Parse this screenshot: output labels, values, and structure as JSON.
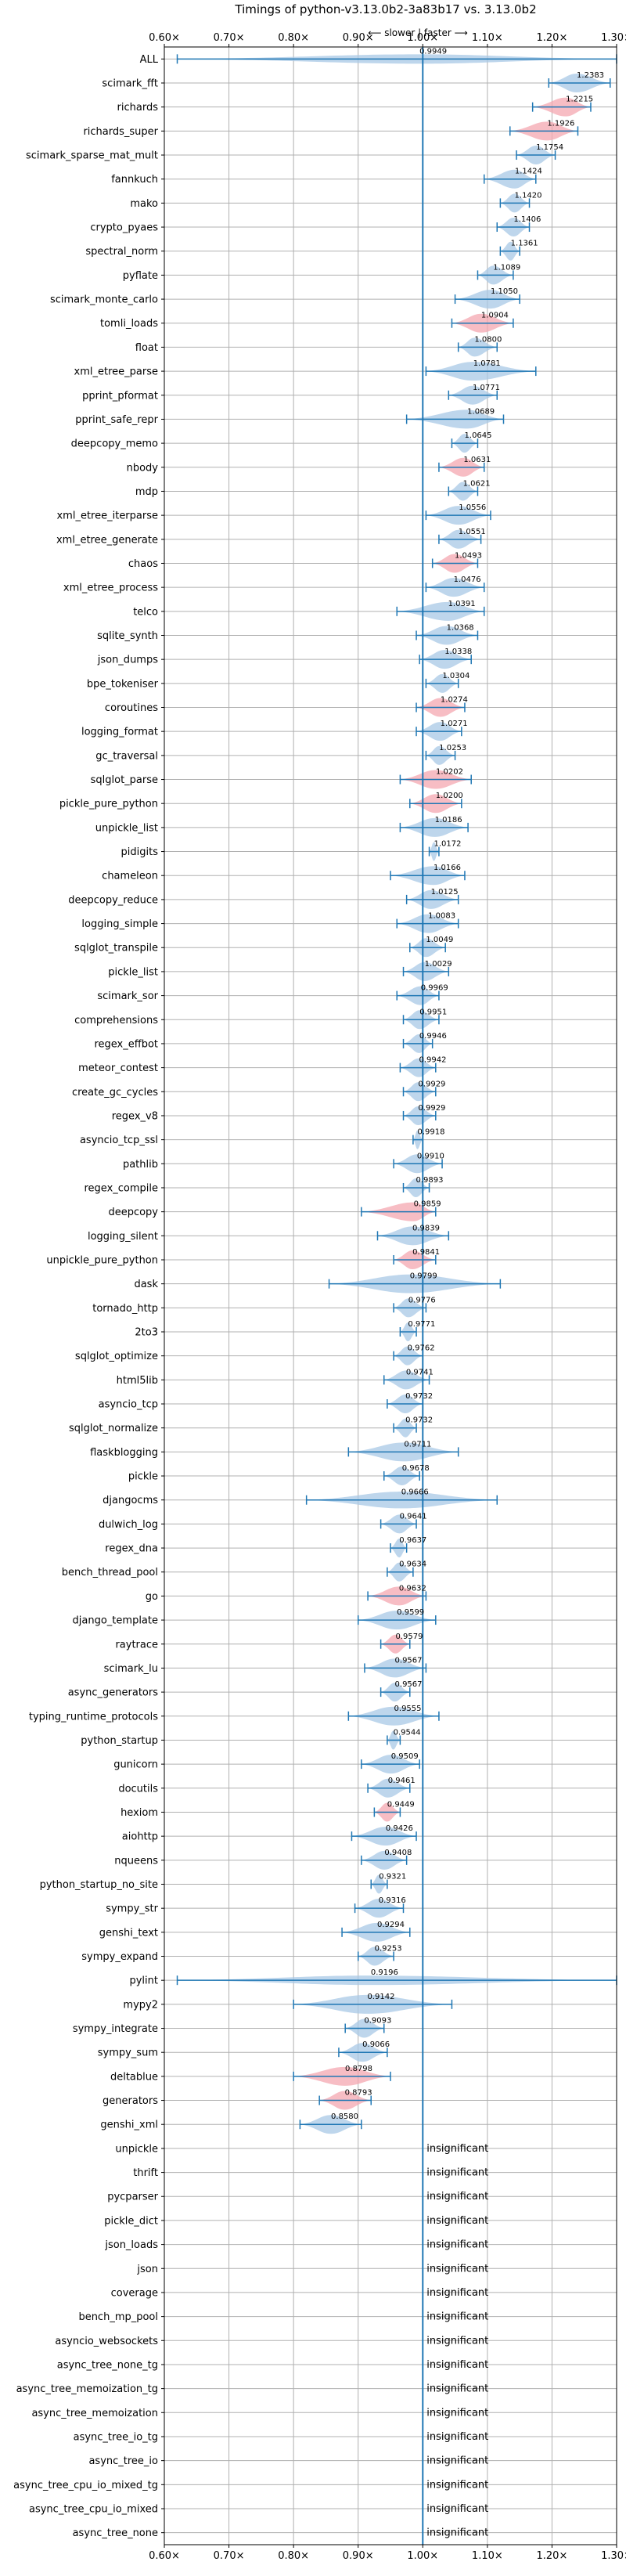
{
  "chart_data": {
    "type": "violin",
    "title": "Timings of python-v3.13.0b2-3a83b17 vs. 3.13.0b2",
    "direction_hint": "⟵ slower | faster ⟶",
    "xlim": [
      0.6,
      1.3
    ],
    "x_ticks": [
      0.6,
      0.7,
      0.8,
      0.9,
      1.0,
      1.1,
      1.2,
      1.3
    ],
    "x_tick_labels": [
      "0.60×",
      "0.70×",
      "0.80×",
      "0.90×",
      "1.00×",
      "1.10×",
      "1.20×",
      "1.30×"
    ],
    "insignificant_label": "insignificant",
    "grid": true,
    "colors": {
      "faster": "#a8c8e6",
      "slower": "#f4a7b0",
      "line": "#1f77b4",
      "axis": "#1f77b4",
      "grid": "#b0b0b0"
    },
    "benchmarks": [
      {
        "name": "ALL",
        "value": 0.9949,
        "low": 0.62,
        "high": 1.3,
        "status": "faster"
      },
      {
        "name": "scimark_fft",
        "value": 1.2383,
        "low": 1.195,
        "high": 1.29,
        "status": "faster"
      },
      {
        "name": "richards",
        "value": 1.2215,
        "low": 1.17,
        "high": 1.26,
        "status": "slower"
      },
      {
        "name": "richards_super",
        "value": 1.1926,
        "low": 1.135,
        "high": 1.24,
        "status": "slower"
      },
      {
        "name": "scimark_sparse_mat_mult",
        "value": 1.1754,
        "low": 1.145,
        "high": 1.205,
        "status": "faster"
      },
      {
        "name": "fannkuch",
        "value": 1.1424,
        "low": 1.095,
        "high": 1.175,
        "status": "faster"
      },
      {
        "name": "mako",
        "value": 1.142,
        "low": 1.12,
        "high": 1.165,
        "status": "faster"
      },
      {
        "name": "crypto_pyaes",
        "value": 1.1406,
        "low": 1.115,
        "high": 1.165,
        "status": "faster"
      },
      {
        "name": "spectral_norm",
        "value": 1.1361,
        "low": 1.12,
        "high": 1.15,
        "status": "faster"
      },
      {
        "name": "pyflate",
        "value": 1.1089,
        "low": 1.085,
        "high": 1.14,
        "status": "faster"
      },
      {
        "name": "scimark_monte_carlo",
        "value": 1.105,
        "low": 1.05,
        "high": 1.15,
        "status": "faster"
      },
      {
        "name": "tomli_loads",
        "value": 1.0904,
        "low": 1.045,
        "high": 1.14,
        "status": "slower"
      },
      {
        "name": "float",
        "value": 1.08,
        "low": 1.055,
        "high": 1.115,
        "status": "faster"
      },
      {
        "name": "xml_etree_parse",
        "value": 1.0781,
        "low": 1.005,
        "high": 1.175,
        "status": "faster"
      },
      {
        "name": "pprint_pformat",
        "value": 1.0771,
        "low": 1.04,
        "high": 1.115,
        "status": "faster"
      },
      {
        "name": "pprint_safe_repr",
        "value": 1.0689,
        "low": 0.975,
        "high": 1.125,
        "status": "faster"
      },
      {
        "name": "deepcopy_memo",
        "value": 1.0645,
        "low": 1.045,
        "high": 1.085,
        "status": "faster"
      },
      {
        "name": "nbody",
        "value": 1.0631,
        "low": 1.025,
        "high": 1.095,
        "status": "slower"
      },
      {
        "name": "mdp",
        "value": 1.0621,
        "low": 1.04,
        "high": 1.085,
        "status": "faster"
      },
      {
        "name": "xml_etree_iterparse",
        "value": 1.0556,
        "low": 1.005,
        "high": 1.105,
        "status": "faster"
      },
      {
        "name": "xml_etree_generate",
        "value": 1.0551,
        "low": 1.025,
        "high": 1.09,
        "status": "faster"
      },
      {
        "name": "chaos",
        "value": 1.0493,
        "low": 1.015,
        "high": 1.085,
        "status": "slower"
      },
      {
        "name": "xml_etree_process",
        "value": 1.0476,
        "low": 1.005,
        "high": 1.095,
        "status": "faster"
      },
      {
        "name": "telco",
        "value": 1.0391,
        "low": 0.96,
        "high": 1.095,
        "status": "faster"
      },
      {
        "name": "sqlite_synth",
        "value": 1.0368,
        "low": 0.99,
        "high": 1.085,
        "status": "faster"
      },
      {
        "name": "json_dumps",
        "value": 1.0338,
        "low": 0.995,
        "high": 1.075,
        "status": "faster"
      },
      {
        "name": "bpe_tokeniser",
        "value": 1.0304,
        "low": 1.005,
        "high": 1.055,
        "status": "faster"
      },
      {
        "name": "coroutines",
        "value": 1.0274,
        "low": 0.99,
        "high": 1.065,
        "status": "slower"
      },
      {
        "name": "logging_format",
        "value": 1.0271,
        "low": 0.99,
        "high": 1.06,
        "status": "faster"
      },
      {
        "name": "gc_traversal",
        "value": 1.0253,
        "low": 1.005,
        "high": 1.05,
        "status": "faster"
      },
      {
        "name": "sqlglot_parse",
        "value": 1.0202,
        "low": 0.965,
        "high": 1.075,
        "status": "slower"
      },
      {
        "name": "pickle_pure_python",
        "value": 1.02,
        "low": 0.98,
        "high": 1.06,
        "status": "slower"
      },
      {
        "name": "unpickle_list",
        "value": 1.0186,
        "low": 0.965,
        "high": 1.07,
        "status": "faster"
      },
      {
        "name": "pidigits",
        "value": 1.0172,
        "low": 1.01,
        "high": 1.025,
        "status": "faster"
      },
      {
        "name": "chameleon",
        "value": 1.0166,
        "low": 0.95,
        "high": 1.065,
        "status": "faster"
      },
      {
        "name": "deepcopy_reduce",
        "value": 1.0125,
        "low": 0.975,
        "high": 1.055,
        "status": "faster"
      },
      {
        "name": "logging_simple",
        "value": 1.0083,
        "low": 0.96,
        "high": 1.055,
        "status": "faster"
      },
      {
        "name": "sqlglot_transpile",
        "value": 1.0049,
        "low": 0.98,
        "high": 1.035,
        "status": "faster"
      },
      {
        "name": "pickle_list",
        "value": 1.0029,
        "low": 0.97,
        "high": 1.04,
        "status": "faster"
      },
      {
        "name": "scimark_sor",
        "value": 0.9969,
        "low": 0.96,
        "high": 1.025,
        "status": "faster"
      },
      {
        "name": "comprehensions",
        "value": 0.9951,
        "low": 0.97,
        "high": 1.025,
        "status": "faster"
      },
      {
        "name": "regex_effbot",
        "value": 0.9946,
        "low": 0.97,
        "high": 1.015,
        "status": "faster"
      },
      {
        "name": "meteor_contest",
        "value": 0.9942,
        "low": 0.965,
        "high": 1.02,
        "status": "faster"
      },
      {
        "name": "create_gc_cycles",
        "value": 0.9929,
        "low": 0.97,
        "high": 1.02,
        "status": "faster"
      },
      {
        "name": "regex_v8",
        "value": 0.9929,
        "low": 0.97,
        "high": 1.02,
        "status": "faster"
      },
      {
        "name": "asyncio_tcp_ssl",
        "value": 0.9918,
        "low": 0.985,
        "high": 1.0,
        "status": "faster"
      },
      {
        "name": "pathlib",
        "value": 0.991,
        "low": 0.955,
        "high": 1.03,
        "status": "faster"
      },
      {
        "name": "regex_compile",
        "value": 0.9893,
        "low": 0.97,
        "high": 1.01,
        "status": "faster"
      },
      {
        "name": "deepcopy",
        "value": 0.9859,
        "low": 0.905,
        "high": 1.02,
        "status": "slower"
      },
      {
        "name": "logging_silent",
        "value": 0.9839,
        "low": 0.93,
        "high": 1.04,
        "status": "faster"
      },
      {
        "name": "unpickle_pure_python",
        "value": 0.9841,
        "low": 0.955,
        "high": 1.02,
        "status": "slower"
      },
      {
        "name": "dask",
        "value": 0.9799,
        "low": 0.855,
        "high": 1.12,
        "status": "faster"
      },
      {
        "name": "tornado_http",
        "value": 0.9776,
        "low": 0.955,
        "high": 1.005,
        "status": "faster"
      },
      {
        "name": "2to3",
        "value": 0.9771,
        "low": 0.965,
        "high": 0.99,
        "status": "faster"
      },
      {
        "name": "sqlglot_optimize",
        "value": 0.9762,
        "low": 0.955,
        "high": 1.0,
        "status": "faster"
      },
      {
        "name": "html5lib",
        "value": 0.9741,
        "low": 0.94,
        "high": 1.01,
        "status": "faster"
      },
      {
        "name": "asyncio_tcp",
        "value": 0.9732,
        "low": 0.945,
        "high": 1.0,
        "status": "faster"
      },
      {
        "name": "sqlglot_normalize",
        "value": 0.9732,
        "low": 0.955,
        "high": 0.99,
        "status": "faster"
      },
      {
        "name": "flaskblogging",
        "value": 0.9711,
        "low": 0.885,
        "high": 1.055,
        "status": "faster"
      },
      {
        "name": "pickle",
        "value": 0.9678,
        "low": 0.94,
        "high": 0.995,
        "status": "faster"
      },
      {
        "name": "djangocms",
        "value": 0.9666,
        "low": 0.82,
        "high": 1.115,
        "status": "faster"
      },
      {
        "name": "dulwich_log",
        "value": 0.9641,
        "low": 0.935,
        "high": 0.99,
        "status": "faster"
      },
      {
        "name": "regex_dna",
        "value": 0.9637,
        "low": 0.95,
        "high": 0.975,
        "status": "faster"
      },
      {
        "name": "bench_thread_pool",
        "value": 0.9634,
        "low": 0.945,
        "high": 0.985,
        "status": "faster"
      },
      {
        "name": "go",
        "value": 0.9632,
        "low": 0.915,
        "high": 1.005,
        "status": "slower"
      },
      {
        "name": "django_template",
        "value": 0.9599,
        "low": 0.9,
        "high": 1.02,
        "status": "faster"
      },
      {
        "name": "raytrace",
        "value": 0.9579,
        "low": 0.935,
        "high": 0.98,
        "status": "slower"
      },
      {
        "name": "scimark_lu",
        "value": 0.9567,
        "low": 0.91,
        "high": 1.005,
        "status": "faster"
      },
      {
        "name": "async_generators",
        "value": 0.9567,
        "low": 0.935,
        "high": 0.98,
        "status": "faster"
      },
      {
        "name": "typing_runtime_protocols",
        "value": 0.9555,
        "low": 0.885,
        "high": 1.025,
        "status": "faster"
      },
      {
        "name": "python_startup",
        "value": 0.9544,
        "low": 0.945,
        "high": 0.965,
        "status": "faster"
      },
      {
        "name": "gunicorn",
        "value": 0.9509,
        "low": 0.905,
        "high": 0.995,
        "status": "faster"
      },
      {
        "name": "docutils",
        "value": 0.9461,
        "low": 0.915,
        "high": 0.98,
        "status": "faster"
      },
      {
        "name": "hexiom",
        "value": 0.9449,
        "low": 0.925,
        "high": 0.965,
        "status": "slower"
      },
      {
        "name": "aiohttp",
        "value": 0.9426,
        "low": 0.89,
        "high": 0.99,
        "status": "faster"
      },
      {
        "name": "nqueens",
        "value": 0.9408,
        "low": 0.905,
        "high": 0.975,
        "status": "faster"
      },
      {
        "name": "python_startup_no_site",
        "value": 0.9321,
        "low": 0.92,
        "high": 0.945,
        "status": "faster"
      },
      {
        "name": "sympy_str",
        "value": 0.9316,
        "low": 0.895,
        "high": 0.97,
        "status": "faster"
      },
      {
        "name": "genshi_text",
        "value": 0.9294,
        "low": 0.875,
        "high": 0.98,
        "status": "faster"
      },
      {
        "name": "sympy_expand",
        "value": 0.9253,
        "low": 0.9,
        "high": 0.955,
        "status": "faster"
      },
      {
        "name": "pylint",
        "value": 0.9196,
        "low": 0.62,
        "high": 1.3,
        "status": "faster"
      },
      {
        "name": "mypy2",
        "value": 0.9142,
        "low": 0.8,
        "high": 1.045,
        "status": "faster"
      },
      {
        "name": "sympy_integrate",
        "value": 0.9093,
        "low": 0.88,
        "high": 0.94,
        "status": "faster"
      },
      {
        "name": "sympy_sum",
        "value": 0.9066,
        "low": 0.87,
        "high": 0.945,
        "status": "faster"
      },
      {
        "name": "deltablue",
        "value": 0.8798,
        "low": 0.8,
        "high": 0.95,
        "status": "slower"
      },
      {
        "name": "generators",
        "value": 0.8793,
        "low": 0.84,
        "high": 0.92,
        "status": "slower"
      },
      {
        "name": "genshi_xml",
        "value": 0.858,
        "low": 0.81,
        "high": 0.905,
        "status": "faster"
      },
      {
        "name": "unpickle",
        "value": null,
        "status": "insignificant"
      },
      {
        "name": "thrift",
        "value": null,
        "status": "insignificant"
      },
      {
        "name": "pycparser",
        "value": null,
        "status": "insignificant"
      },
      {
        "name": "pickle_dict",
        "value": null,
        "status": "insignificant"
      },
      {
        "name": "json_loads",
        "value": null,
        "status": "insignificant"
      },
      {
        "name": "json",
        "value": null,
        "status": "insignificant"
      },
      {
        "name": "coverage",
        "value": null,
        "status": "insignificant"
      },
      {
        "name": "bench_mp_pool",
        "value": null,
        "status": "insignificant"
      },
      {
        "name": "asyncio_websockets",
        "value": null,
        "status": "insignificant"
      },
      {
        "name": "async_tree_none_tg",
        "value": null,
        "status": "insignificant"
      },
      {
        "name": "async_tree_memoization_tg",
        "value": null,
        "status": "insignificant"
      },
      {
        "name": "async_tree_memoization",
        "value": null,
        "status": "insignificant"
      },
      {
        "name": "async_tree_io_tg",
        "value": null,
        "status": "insignificant"
      },
      {
        "name": "async_tree_io",
        "value": null,
        "status": "insignificant"
      },
      {
        "name": "async_tree_cpu_io_mixed_tg",
        "value": null,
        "status": "insignificant"
      },
      {
        "name": "async_tree_cpu_io_mixed",
        "value": null,
        "status": "insignificant"
      },
      {
        "name": "async_tree_none",
        "value": null,
        "status": "insignificant"
      }
    ]
  }
}
